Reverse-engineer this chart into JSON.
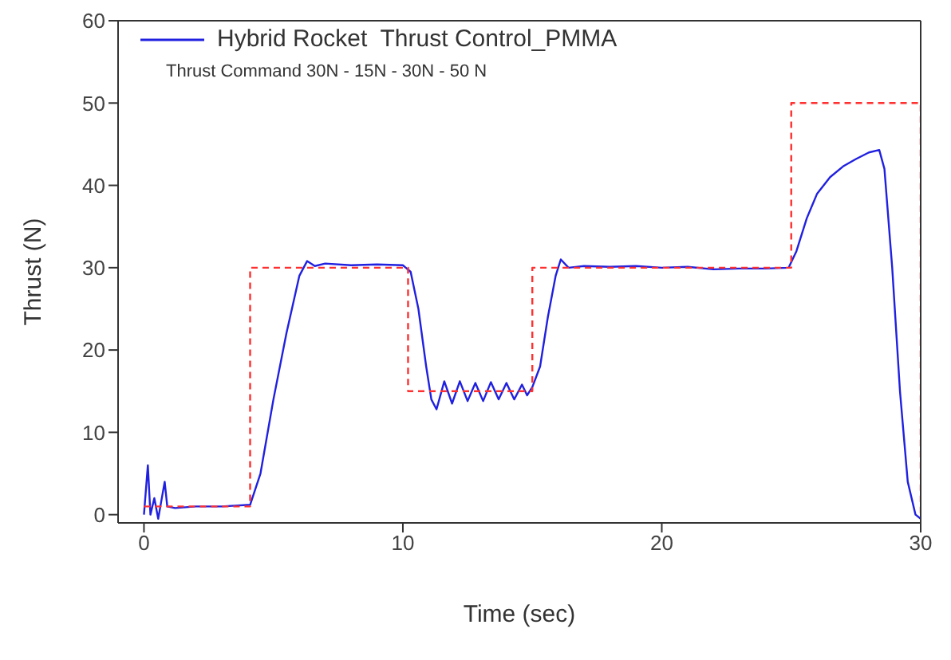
{
  "chart_data": {
    "type": "line",
    "xlabel": "Time (sec)",
    "ylabel": "Thrust (N)",
    "annotations": [
      "Thrust Command 30N - 15N - 30N - 50 N"
    ],
    "xlim": [
      -1,
      30
    ],
    "ylim": [
      -1,
      60
    ],
    "xticks": [
      0,
      10,
      20,
      30
    ],
    "yticks": [
      0,
      10,
      20,
      30,
      40,
      50,
      60
    ],
    "legend": "top left",
    "marker": "none",
    "series": [
      {
        "name": "Hybrid Rocket  Thrust Control_PMMA",
        "color": "#2020e0",
        "line_style": "solid",
        "x": [
          0,
          0.15,
          0.25,
          0.4,
          0.55,
          0.8,
          0.9,
          1.2,
          2,
          3,
          4.1,
          4.5,
          5,
          5.5,
          6,
          6.3,
          6.6,
          7,
          8,
          9,
          10,
          10.3,
          10.6,
          10.9,
          11.1,
          11.3,
          11.6,
          11.9,
          12.2,
          12.5,
          12.8,
          13.1,
          13.4,
          13.7,
          14,
          14.3,
          14.6,
          14.8,
          15,
          15.3,
          15.6,
          15.9,
          16.1,
          16.4,
          17,
          18,
          19,
          20,
          21,
          22,
          23,
          24,
          24.9,
          25.2,
          25.6,
          26,
          26.5,
          27,
          27.5,
          28,
          28.4,
          28.6,
          28.9,
          29.2,
          29.5,
          29.8,
          30
        ],
        "values": [
          0,
          6,
          0,
          2,
          -0.5,
          4,
          1,
          0.8,
          1,
          1,
          1.2,
          5,
          14,
          22,
          29,
          30.8,
          30.2,
          30.5,
          30.3,
          30.4,
          30.3,
          29.5,
          25,
          18,
          14,
          12.8,
          16.2,
          13.5,
          16.2,
          13.8,
          16,
          13.8,
          16.1,
          14,
          16,
          14,
          15.8,
          14.5,
          15.5,
          18,
          24,
          29,
          31,
          30,
          30.2,
          30.1,
          30.2,
          30,
          30.1,
          29.8,
          29.9,
          29.9,
          30,
          32,
          36,
          39,
          41,
          42.3,
          43.2,
          44,
          44.3,
          42,
          30,
          15,
          4,
          0,
          -0.5
        ]
      },
      {
        "color": "#ff3030",
        "type": "step",
        "line_style": "dashed",
        "x": [
          0,
          4.1,
          10.2,
          15,
          25,
          30
        ],
        "values": [
          1,
          30,
          15,
          30,
          50,
          0
        ]
      }
    ]
  }
}
